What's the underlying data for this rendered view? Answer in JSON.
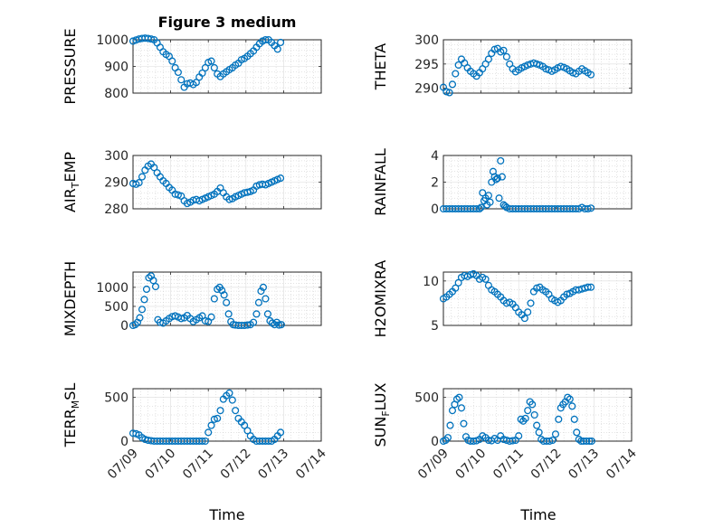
{
  "figure": {
    "title": "Figure 3 medium",
    "accent_color": "#0072bd"
  },
  "chart_data": [
    {
      "id": "pressure",
      "type": "scatter",
      "title": "Figure 3 medium",
      "xlabel": "",
      "ylabel": [
        "PRESSURE"
      ],
      "xlim": [
        0,
        5
      ],
      "ylim": [
        800,
        1000
      ],
      "yticks": [
        800,
        900,
        1000
      ],
      "x_tick_labels": [
        "07/09",
        "07/10",
        "07/11",
        "07/12",
        "07/13",
        "07/14"
      ],
      "x": [
        0.0,
        0.08,
        0.16,
        0.24,
        0.32,
        0.4,
        0.48,
        0.56,
        0.64,
        0.72,
        0.8,
        0.88,
        0.96,
        1.04,
        1.12,
        1.2,
        1.28,
        1.36,
        1.44,
        1.52,
        1.6,
        1.68,
        1.76,
        1.84,
        1.92,
        2.0,
        2.08,
        2.16,
        2.24,
        2.32,
        2.4,
        2.48,
        2.56,
        2.64,
        2.72,
        2.8,
        2.88,
        2.96,
        3.04,
        3.12,
        3.2,
        3.28,
        3.36,
        3.44,
        3.52,
        3.6,
        3.68,
        3.76,
        3.84,
        3.92
      ],
      "y": [
        995,
        999,
        1003,
        1005,
        1006,
        1005,
        1003,
        1000,
        988,
        972,
        955,
        945,
        938,
        920,
        895,
        878,
        850,
        822,
        835,
        838,
        832,
        840,
        860,
        875,
        895,
        915,
        920,
        895,
        872,
        862,
        872,
        880,
        888,
        895,
        905,
        912,
        925,
        930,
        938,
        948,
        958,
        972,
        985,
        995,
        1000,
        1000,
        990,
        978,
        965,
        990
      ]
    },
    {
      "id": "theta",
      "type": "scatter",
      "xlabel": "",
      "ylabel": [
        "THETA"
      ],
      "xlim": [
        0,
        5
      ],
      "ylim": [
        289,
        300
      ],
      "yticks": [
        290,
        295,
        300
      ],
      "x_tick_labels": [
        "07/09",
        "07/10",
        "07/11",
        "07/12",
        "07/13",
        "07/14"
      ],
      "x": [
        0.0,
        0.08,
        0.16,
        0.24,
        0.32,
        0.4,
        0.48,
        0.56,
        0.64,
        0.72,
        0.8,
        0.88,
        0.96,
        1.04,
        1.12,
        1.2,
        1.28,
        1.36,
        1.44,
        1.52,
        1.6,
        1.68,
        1.76,
        1.84,
        1.92,
        2.0,
        2.08,
        2.16,
        2.24,
        2.32,
        2.4,
        2.48,
        2.56,
        2.64,
        2.72,
        2.8,
        2.88,
        2.96,
        3.04,
        3.12,
        3.2,
        3.28,
        3.36,
        3.44,
        3.52,
        3.6,
        3.68,
        3.76,
        3.84,
        3.92
      ],
      "y": [
        290.2,
        289.3,
        289.1,
        290.8,
        293.0,
        294.8,
        296.0,
        295.2,
        294.2,
        293.5,
        293.0,
        292.5,
        293.2,
        294.0,
        295.0,
        296.0,
        297.2,
        298.0,
        298.2,
        297.5,
        297.8,
        296.5,
        295.0,
        294.0,
        293.4,
        293.8,
        294.2,
        294.5,
        294.8,
        295.0,
        295.2,
        295.0,
        294.8,
        294.5,
        294.0,
        293.8,
        293.5,
        293.8,
        294.2,
        294.5,
        294.3,
        294.0,
        293.6,
        293.2,
        293.0,
        293.5,
        294.0,
        293.6,
        293.2,
        292.8
      ]
    },
    {
      "id": "air_temp",
      "type": "scatter",
      "xlabel": "",
      "ylabel": [
        "AIR",
        "T",
        "EMP"
      ],
      "xlim": [
        0,
        5
      ],
      "ylim": [
        280,
        300
      ],
      "yticks": [
        280,
        290,
        300
      ],
      "x_tick_labels": [
        "07/09",
        "07/10",
        "07/11",
        "07/12",
        "07/13",
        "07/14"
      ],
      "x": [
        0.0,
        0.08,
        0.16,
        0.24,
        0.32,
        0.4,
        0.48,
        0.56,
        0.64,
        0.72,
        0.8,
        0.88,
        0.96,
        1.04,
        1.12,
        1.2,
        1.28,
        1.36,
        1.44,
        1.52,
        1.6,
        1.68,
        1.76,
        1.84,
        1.92,
        2.0,
        2.08,
        2.16,
        2.24,
        2.32,
        2.4,
        2.48,
        2.56,
        2.64,
        2.72,
        2.8,
        2.88,
        2.96,
        3.04,
        3.12,
        3.2,
        3.28,
        3.36,
        3.44,
        3.52,
        3.6,
        3.68,
        3.76,
        3.84,
        3.92
      ],
      "y": [
        289.5,
        289.2,
        289.8,
        292.0,
        294.5,
        296.0,
        296.8,
        295.5,
        293.5,
        292.0,
        290.5,
        289.5,
        288.0,
        287.0,
        285.5,
        285.2,
        284.8,
        283.0,
        282.0,
        282.5,
        283.2,
        283.5,
        283.0,
        283.5,
        284.0,
        284.5,
        285.0,
        285.5,
        286.5,
        287.8,
        286.0,
        284.5,
        283.5,
        283.8,
        284.5,
        285.0,
        285.5,
        286.0,
        286.2,
        286.5,
        287.0,
        288.5,
        289.0,
        289.2,
        289.0,
        289.5,
        290.0,
        290.5,
        291.0,
        291.5
      ]
    },
    {
      "id": "rainfall",
      "type": "scatter",
      "xlabel": "",
      "ylabel": [
        "RAINFALL"
      ],
      "xlim": [
        0,
        5
      ],
      "ylim": [
        0,
        4
      ],
      "yticks": [
        0,
        2,
        4
      ],
      "x_tick_labels": [
        "07/09",
        "07/10",
        "07/11",
        "07/12",
        "07/13",
        "07/14"
      ],
      "x": [
        0.0,
        0.08,
        0.16,
        0.24,
        0.32,
        0.4,
        0.48,
        0.56,
        0.64,
        0.72,
        0.8,
        0.88,
        0.96,
        1.0,
        1.04,
        1.08,
        1.12,
        1.16,
        1.2,
        1.24,
        1.28,
        1.32,
        1.36,
        1.4,
        1.44,
        1.48,
        1.52,
        1.56,
        1.6,
        1.64,
        1.68,
        1.76,
        1.84,
        1.92,
        2.0,
        2.08,
        2.16,
        2.24,
        2.32,
        2.4,
        2.48,
        2.56,
        2.64,
        2.72,
        2.8,
        2.88,
        2.96,
        3.04,
        3.12,
        3.2,
        3.28,
        3.36,
        3.44,
        3.52,
        3.6,
        3.68,
        3.76,
        3.84,
        3.92
      ],
      "y": [
        0,
        0,
        0,
        0,
        0,
        0,
        0,
        0,
        0,
        0,
        0,
        0,
        0,
        0.1,
        1.2,
        0.6,
        0.8,
        0.3,
        1.0,
        0.5,
        2.0,
        2.8,
        2.4,
        2.2,
        2.3,
        0.8,
        3.6,
        2.4,
        0.3,
        0.2,
        0.1,
        0,
        0,
        0,
        0,
        0,
        0,
        0,
        0,
        0,
        0,
        0,
        0,
        0,
        0,
        0,
        0,
        0,
        0,
        0,
        0,
        0,
        0,
        0,
        0,
        0.1,
        0,
        0,
        0.05
      ]
    },
    {
      "id": "mixdepth",
      "type": "scatter",
      "xlabel": "",
      "ylabel": [
        "MIXDEPTH"
      ],
      "xlim": [
        0,
        5
      ],
      "ylim": [
        0,
        1400
      ],
      "yticks": [
        0,
        500,
        1000
      ],
      "x_tick_labels": [
        "07/09",
        "07/10",
        "07/11",
        "07/12",
        "07/13",
        "07/14"
      ],
      "x": [
        0.0,
        0.06,
        0.12,
        0.18,
        0.24,
        0.3,
        0.36,
        0.42,
        0.48,
        0.54,
        0.6,
        0.66,
        0.72,
        0.8,
        0.88,
        0.96,
        1.04,
        1.12,
        1.2,
        1.28,
        1.36,
        1.44,
        1.52,
        1.6,
        1.68,
        1.76,
        1.84,
        1.92,
        2.0,
        2.08,
        2.16,
        2.24,
        2.3,
        2.36,
        2.42,
        2.48,
        2.54,
        2.6,
        2.66,
        2.72,
        2.8,
        2.88,
        2.96,
        3.04,
        3.12,
        3.2,
        3.28,
        3.34,
        3.4,
        3.46,
        3.52,
        3.58,
        3.64,
        3.7,
        3.76,
        3.82,
        3.88,
        3.94
      ],
      "y": [
        0,
        20,
        80,
        200,
        420,
        680,
        950,
        1250,
        1300,
        1180,
        1020,
        150,
        80,
        60,
        120,
        180,
        230,
        250,
        220,
        180,
        200,
        260,
        180,
        100,
        150,
        200,
        250,
        120,
        100,
        220,
        700,
        950,
        1000,
        920,
        800,
        600,
        300,
        100,
        20,
        10,
        0,
        0,
        0,
        10,
        20,
        80,
        300,
        600,
        900,
        1000,
        700,
        300,
        120,
        60,
        20,
        80,
        10,
        20
      ]
    },
    {
      "id": "h2omixra",
      "type": "scatter",
      "xlabel": "",
      "ylabel": [
        "H2OMIXRA"
      ],
      "xlim": [
        0,
        5
      ],
      "ylim": [
        5,
        11
      ],
      "yticks": [
        5,
        10
      ],
      "x_tick_labels": [
        "07/09",
        "07/10",
        "07/11",
        "07/12",
        "07/13",
        "07/14"
      ],
      "x": [
        0.0,
        0.08,
        0.16,
        0.24,
        0.32,
        0.4,
        0.48,
        0.56,
        0.64,
        0.72,
        0.8,
        0.88,
        0.96,
        1.04,
        1.12,
        1.2,
        1.28,
        1.36,
        1.44,
        1.52,
        1.6,
        1.68,
        1.76,
        1.84,
        1.92,
        2.0,
        2.08,
        2.16,
        2.24,
        2.32,
        2.4,
        2.48,
        2.56,
        2.64,
        2.72,
        2.8,
        2.88,
        2.96,
        3.04,
        3.12,
        3.2,
        3.28,
        3.36,
        3.44,
        3.52,
        3.6,
        3.68,
        3.76,
        3.84,
        3.92
      ],
      "y": [
        8.0,
        8.2,
        8.5,
        8.8,
        9.2,
        9.8,
        10.4,
        10.6,
        10.5,
        10.7,
        10.8,
        10.6,
        10.2,
        10.4,
        10.2,
        9.5,
        9.0,
        8.8,
        8.5,
        8.2,
        7.8,
        7.5,
        7.6,
        7.4,
        7.0,
        6.5,
        6.2,
        5.8,
        6.5,
        7.5,
        8.8,
        9.2,
        9.3,
        9.0,
        8.8,
        8.5,
        8.0,
        7.8,
        7.6,
        7.8,
        8.2,
        8.5,
        8.6,
        8.8,
        9.0,
        9.0,
        9.1,
        9.2,
        9.3,
        9.3
      ]
    },
    {
      "id": "terr_msl",
      "type": "scatter",
      "xlabel": "Time",
      "ylabel": [
        "TERR",
        "M",
        "SL"
      ],
      "xlim": [
        0,
        5
      ],
      "ylim": [
        0,
        600
      ],
      "yticks": [
        0,
        500
      ],
      "x_tick_labels": [
        "07/09",
        "07/10",
        "07/11",
        "07/12",
        "07/13",
        "07/14"
      ],
      "x": [
        0.0,
        0.08,
        0.16,
        0.24,
        0.32,
        0.4,
        0.48,
        0.56,
        0.64,
        0.72,
        0.8,
        0.88,
        0.96,
        1.04,
        1.12,
        1.2,
        1.28,
        1.36,
        1.44,
        1.52,
        1.6,
        1.68,
        1.76,
        1.84,
        1.92,
        2.0,
        2.08,
        2.16,
        2.24,
        2.32,
        2.4,
        2.48,
        2.56,
        2.64,
        2.72,
        2.8,
        2.88,
        2.96,
        3.04,
        3.12,
        3.2,
        3.28,
        3.36,
        3.44,
        3.52,
        3.6,
        3.68,
        3.76,
        3.84,
        3.92
      ],
      "y": [
        90,
        85,
        70,
        40,
        20,
        10,
        5,
        0,
        0,
        0,
        0,
        0,
        0,
        0,
        0,
        0,
        0,
        0,
        0,
        0,
        0,
        0,
        0,
        0,
        0,
        100,
        180,
        250,
        260,
        350,
        480,
        520,
        550,
        470,
        350,
        260,
        220,
        180,
        120,
        60,
        20,
        0,
        0,
        0,
        0,
        0,
        0,
        20,
        60,
        100
      ]
    },
    {
      "id": "sun_flux",
      "type": "scatter",
      "xlabel": "Time",
      "ylabel": [
        "SUN",
        "F",
        "LUX"
      ],
      "xlim": [
        0,
        5
      ],
      "ylim": [
        0,
        600
      ],
      "yticks": [
        0,
        500
      ],
      "x_tick_labels": [
        "07/09",
        "07/10",
        "07/11",
        "07/12",
        "07/13",
        "07/14"
      ],
      "x": [
        0.0,
        0.06,
        0.12,
        0.18,
        0.24,
        0.3,
        0.36,
        0.42,
        0.48,
        0.54,
        0.6,
        0.66,
        0.72,
        0.8,
        0.88,
        0.96,
        1.04,
        1.12,
        1.2,
        1.28,
        1.36,
        1.44,
        1.52,
        1.6,
        1.68,
        1.76,
        1.84,
        1.92,
        2.0,
        2.06,
        2.12,
        2.18,
        2.24,
        2.3,
        2.36,
        2.42,
        2.48,
        2.54,
        2.6,
        2.66,
        2.74,
        2.82,
        2.9,
        2.98,
        3.06,
        3.12,
        3.18,
        3.24,
        3.3,
        3.36,
        3.42,
        3.48,
        3.54,
        3.6,
        3.66,
        3.72,
        3.8,
        3.88,
        3.94
      ],
      "y": [
        0,
        10,
        40,
        180,
        350,
        420,
        480,
        500,
        380,
        200,
        50,
        10,
        0,
        0,
        5,
        20,
        60,
        40,
        10,
        5,
        30,
        10,
        60,
        20,
        10,
        0,
        5,
        10,
        60,
        250,
        230,
        260,
        350,
        450,
        420,
        300,
        180,
        100,
        20,
        0,
        0,
        0,
        10,
        80,
        250,
        380,
        420,
        450,
        500,
        480,
        400,
        250,
        100,
        20,
        0,
        0,
        0,
        0,
        0
      ]
    }
  ]
}
